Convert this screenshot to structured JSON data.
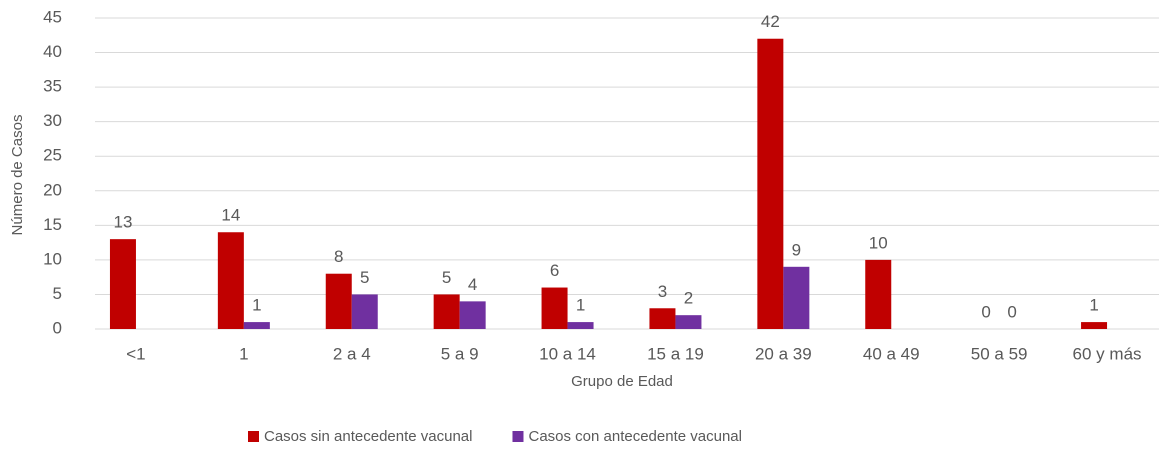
{
  "chart_data": {
    "type": "bar",
    "categories": [
      "<1",
      "1",
      "2 a 4",
      "5 a 9",
      "10 a 14",
      "15 a 19",
      "20 a 39",
      "40 a 49",
      "50 a 59",
      "60 y más"
    ],
    "series": [
      {
        "name": "Casos sin antecedente vacunal",
        "color": "#c00000",
        "values": [
          13,
          14,
          8,
          5,
          6,
          3,
          42,
          10,
          0,
          1
        ]
      },
      {
        "name": "Casos con antecedente vacunal",
        "color": "#7030a0",
        "values": [
          null,
          1,
          5,
          4,
          1,
          2,
          9,
          null,
          0,
          null
        ]
      }
    ],
    "xlabel": "Grupo de Edad",
    "ylabel": "Número de Casos",
    "ylim": [
      0,
      45
    ],
    "yticks": [
      0,
      5,
      10,
      15,
      20,
      25,
      30,
      35,
      40,
      45
    ],
    "grid": true
  }
}
